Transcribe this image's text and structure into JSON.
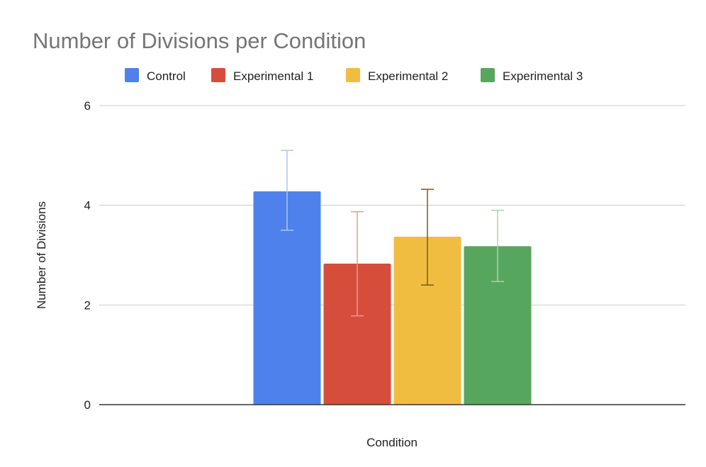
{
  "chart_data": {
    "type": "bar",
    "title": "Number of Divisions per Condition",
    "xlabel": "Condition",
    "ylabel": "Number of Divisions",
    "ylim": [
      0,
      6
    ],
    "yticks": [
      0,
      2,
      4,
      6
    ],
    "categories": [
      ""
    ],
    "grid": true,
    "legend_position": "top",
    "series": [
      {
        "name": "Control",
        "values": [
          4.28
        ],
        "error_low": [
          3.5
        ],
        "error_high": [
          5.1
        ],
        "color": "#4f81ec",
        "error_color": "#aec6f6"
      },
      {
        "name": "Experimental 1",
        "values": [
          2.83
        ],
        "error_low": [
          1.78
        ],
        "error_high": [
          3.87
        ],
        "color": "#d64d3c",
        "error_color": "#ea9a90"
      },
      {
        "name": "Experimental 2",
        "values": [
          3.37
        ],
        "error_low": [
          2.4
        ],
        "error_high": [
          4.32
        ],
        "color": "#f1bd41",
        "error_color": "#7a5c10"
      },
      {
        "name": "Experimental 3",
        "values": [
          3.18
        ],
        "error_low": [
          2.47
        ],
        "error_high": [
          3.9
        ],
        "color": "#57a65d",
        "error_color": "#a6d6a8"
      }
    ]
  }
}
